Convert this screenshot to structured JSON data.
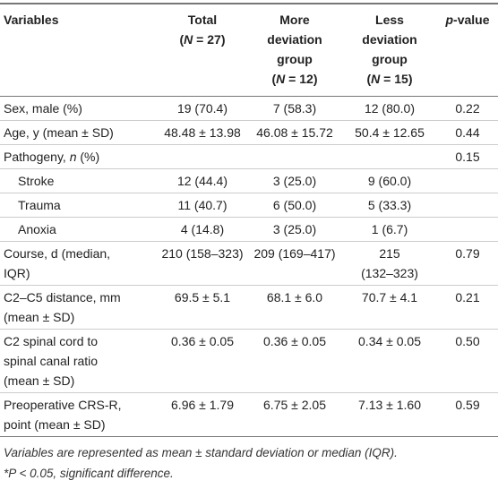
{
  "table": {
    "header": [
      [
        [
          "Variables"
        ]
      ],
      [
        [
          "Total"
        ],
        [
          "(",
          {
            "t": "N",
            "i": true
          },
          " = 27)"
        ]
      ],
      [
        [
          "More"
        ],
        [
          "deviation"
        ],
        [
          "group"
        ],
        [
          "(",
          {
            "t": "N",
            "i": true
          },
          " = 12)"
        ]
      ],
      [
        [
          "Less"
        ],
        [
          "deviation"
        ],
        [
          "group"
        ],
        [
          "(",
          {
            "t": "N",
            "i": true
          },
          " = 15)"
        ]
      ],
      [
        [
          {
            "t": "p",
            "i": true
          },
          "-value"
        ]
      ]
    ],
    "rows": [
      {
        "label": [
          "Sex, male (%)"
        ],
        "cells": [
          [
            "19 (70.4)"
          ],
          [
            "7 (58.3)"
          ],
          [
            "12 (80.0)"
          ],
          [
            "0.22"
          ]
        ]
      },
      {
        "label": [
          "Age, y (mean ± SD)"
        ],
        "cells": [
          [
            "48.48 ± 13.98"
          ],
          [
            "46.08 ± 15.72"
          ],
          [
            "50.4 ± 12.65"
          ],
          [
            "0.44"
          ]
        ]
      },
      {
        "label": [
          [
            "Pathogeny, ",
            {
              "t": "n",
              "i": true
            },
            " (%)"
          ]
        ],
        "cells": [
          null,
          null,
          null,
          [
            "0.15"
          ]
        ]
      },
      {
        "label": [
          "Stroke"
        ],
        "indent": true,
        "cells": [
          [
            "12 (44.4)"
          ],
          [
            "3 (25.0)"
          ],
          [
            "9 (60.0)"
          ],
          null
        ]
      },
      {
        "label": [
          "Trauma"
        ],
        "indent": true,
        "cells": [
          [
            "11 (40.7)"
          ],
          [
            "6 (50.0)"
          ],
          [
            "5 (33.3)"
          ],
          null
        ]
      },
      {
        "label": [
          "Anoxia"
        ],
        "indent": true,
        "cells": [
          [
            "4 (14.8)"
          ],
          [
            "3 (25.0)"
          ],
          [
            "1 (6.7)"
          ],
          null
        ]
      },
      {
        "label": [
          "Course, d (median,",
          "IQR)"
        ],
        "cells": [
          [
            "210 (158–323)"
          ],
          [
            "209 (169–417)"
          ],
          [
            "215",
            "(132–323)"
          ],
          [
            "0.79"
          ]
        ]
      },
      {
        "label": [
          "C2–C5 distance, mm",
          "(mean ± SD)"
        ],
        "cells": [
          [
            "69.5 ± 5.1"
          ],
          [
            "68.1 ± 6.0"
          ],
          [
            "70.7 ± 4.1"
          ],
          [
            "0.21"
          ]
        ]
      },
      {
        "label": [
          "C2 spinal cord to",
          "spinal canal ratio",
          "(mean ± SD)"
        ],
        "cells": [
          [
            "0.36 ± 0.05"
          ],
          [
            "0.36 ± 0.05"
          ],
          [
            "0.34 ± 0.05"
          ],
          [
            "0.50"
          ]
        ]
      },
      {
        "label": [
          "Preoperative CRS-R,",
          "point (mean ± SD)"
        ],
        "cells": [
          [
            "6.96 ± 1.79"
          ],
          [
            "6.75 ± 2.05"
          ],
          [
            "7.13 ± 1.60"
          ],
          [
            "0.59"
          ]
        ]
      }
    ],
    "notes": [
      "Variables are represented as mean ± standard deviation or median (IQR).",
      "*P < 0.05, significant difference."
    ]
  }
}
